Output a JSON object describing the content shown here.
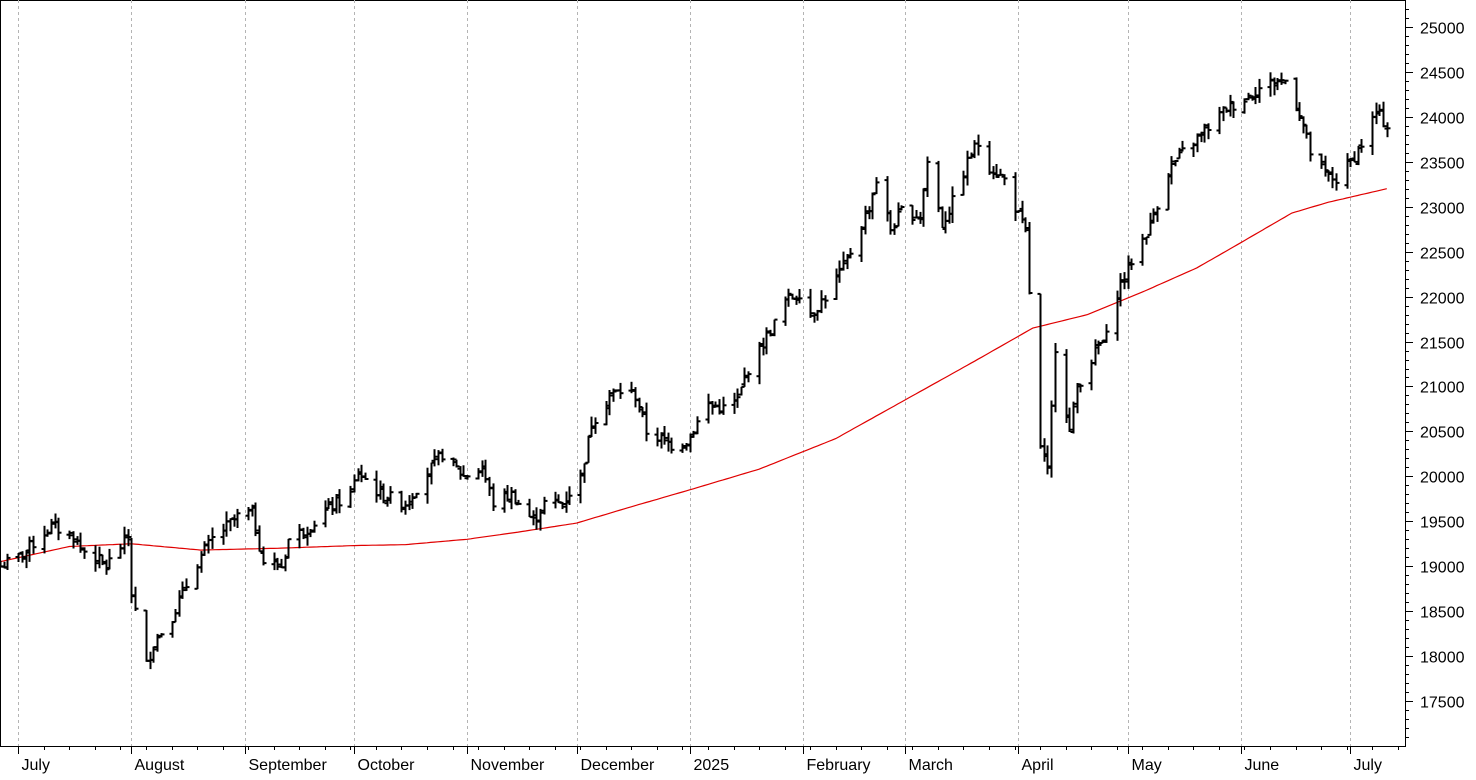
{
  "chart_data": {
    "type": "bar",
    "style": "ohlc",
    "title": "",
    "xlabel": "",
    "ylabel": "",
    "ylim": [
      17000,
      25300
    ],
    "y_ticks": [
      17500,
      18000,
      18500,
      19000,
      19500,
      20000,
      20500,
      21000,
      21500,
      22000,
      22500,
      23000,
      23500,
      24000,
      24500,
      25000
    ],
    "x_range": [
      "2024-06-26",
      "2025-07-16"
    ],
    "month_labels": [
      {
        "label": "July",
        "date": "2024-07-01"
      },
      {
        "label": "August",
        "date": "2024-08-01"
      },
      {
        "label": "September",
        "date": "2024-09-01"
      },
      {
        "label": "October",
        "date": "2024-10-01"
      },
      {
        "label": "November",
        "date": "2024-11-01"
      },
      {
        "label": "December",
        "date": "2024-12-01"
      },
      {
        "label": "2025",
        "date": "2025-01-01"
      },
      {
        "label": "February",
        "date": "2025-02-01"
      },
      {
        "label": "March",
        "date": "2025-03-01"
      },
      {
        "label": "April",
        "date": "2025-04-01"
      },
      {
        "label": "May",
        "date": "2025-05-01"
      },
      {
        "label": "June",
        "date": "2025-06-01"
      },
      {
        "label": "July",
        "date": "2025-07-01"
      }
    ],
    "grid": "vertical dashed at month starts",
    "colors": {
      "price": "#000000",
      "moving_average": "#e00000",
      "grid": "#b4b4b4",
      "axis": "#000000"
    },
    "series": [
      {
        "style": "ohlc",
        "key_points": [
          [
            "2024-06-26",
            19000
          ],
          [
            "2024-07-01",
            19100
          ],
          [
            "2024-07-10",
            19450
          ],
          [
            "2024-07-16",
            19330
          ],
          [
            "2024-07-18",
            19200
          ],
          [
            "2024-07-25",
            19000
          ],
          [
            "2024-07-31",
            19330
          ],
          [
            "2024-08-01",
            18700
          ],
          [
            "2024-08-05",
            17900
          ],
          [
            "2024-08-07",
            18150
          ],
          [
            "2024-08-12",
            18450
          ],
          [
            "2024-08-15",
            18700
          ],
          [
            "2024-08-19",
            19050
          ],
          [
            "2024-08-23",
            19300
          ],
          [
            "2024-08-30",
            19550
          ],
          [
            "2024-09-03",
            19600
          ],
          [
            "2024-09-06",
            19050
          ],
          [
            "2024-09-11",
            19000
          ],
          [
            "2024-09-13",
            19300
          ],
          [
            "2024-09-19",
            19450
          ],
          [
            "2024-09-24",
            19650
          ],
          [
            "2024-09-30",
            19800
          ],
          [
            "2024-10-02",
            20050
          ],
          [
            "2024-10-08",
            19800
          ],
          [
            "2024-10-15",
            19700
          ],
          [
            "2024-10-21",
            20050
          ],
          [
            "2024-10-25",
            20250
          ],
          [
            "2024-10-31",
            20000
          ],
          [
            "2024-11-05",
            20100
          ],
          [
            "2024-11-08",
            19700
          ],
          [
            "2024-11-13",
            19800
          ],
          [
            "2024-11-19",
            19500
          ],
          [
            "2024-11-22",
            19700
          ],
          [
            "2024-11-27",
            19700
          ],
          [
            "2024-12-02",
            20000
          ],
          [
            "2024-12-05",
            20600
          ],
          [
            "2024-12-10",
            20900
          ],
          [
            "2024-12-13",
            20950
          ],
          [
            "2024-12-17",
            20900
          ],
          [
            "2024-12-20",
            20500
          ],
          [
            "2024-12-27",
            20350
          ],
          [
            "2024-12-31",
            20400
          ],
          [
            "2025-01-06",
            20800
          ],
          [
            "2025-01-10",
            20750
          ],
          [
            "2025-01-14",
            20850
          ],
          [
            "2025-01-17",
            21200
          ],
          [
            "2025-01-24",
            21700
          ],
          [
            "2025-01-27",
            21950
          ],
          [
            "2025-01-31",
            22050
          ],
          [
            "2025-02-03",
            21800
          ],
          [
            "2025-02-07",
            22000
          ],
          [
            "2025-02-13",
            22400
          ],
          [
            "2025-02-19",
            23000
          ],
          [
            "2025-02-21",
            23300
          ],
          [
            "2025-02-25",
            22750
          ],
          [
            "2025-02-28",
            22950
          ],
          [
            "2025-03-05",
            22900
          ],
          [
            "2025-03-07",
            23500
          ],
          [
            "2025-03-11",
            22800
          ],
          [
            "2025-03-14",
            23050
          ],
          [
            "2025-03-19",
            23600
          ],
          [
            "2025-03-21",
            23700
          ],
          [
            "2025-03-24",
            23450
          ],
          [
            "2025-03-28",
            23300
          ],
          [
            "2025-04-01",
            22900
          ],
          [
            "2025-04-03",
            22700
          ],
          [
            "2025-04-04",
            22050
          ],
          [
            "2025-04-07",
            20300
          ],
          [
            "2025-04-09",
            20050
          ],
          [
            "2025-04-11",
            21450
          ],
          [
            "2025-04-15",
            20500
          ],
          [
            "2025-04-17",
            21000
          ],
          [
            "2025-04-23",
            21450
          ],
          [
            "2025-04-25",
            21550
          ],
          [
            "2025-04-28",
            22050
          ],
          [
            "2025-05-02",
            22400
          ],
          [
            "2025-05-07",
            22800
          ],
          [
            "2025-05-12",
            23400
          ],
          [
            "2025-05-16",
            23600
          ],
          [
            "2025-05-21",
            23800
          ],
          [
            "2025-05-28",
            24100
          ],
          [
            "2025-06-02",
            24200
          ],
          [
            "2025-06-05",
            24300
          ],
          [
            "2025-06-11",
            24400
          ],
          [
            "2025-06-13",
            24400
          ],
          [
            "2025-06-17",
            24050
          ],
          [
            "2025-06-20",
            23600
          ],
          [
            "2025-06-24",
            23350
          ],
          [
            "2025-06-27",
            23300
          ],
          [
            "2025-07-01",
            23500
          ],
          [
            "2025-07-04",
            23700
          ],
          [
            "2025-07-08",
            24050
          ],
          [
            "2025-07-10",
            23950
          ],
          [
            "2025-07-11",
            23900
          ]
        ]
      },
      {
        "style": "line",
        "key_points": [
          [
            "2024-06-26",
            19050
          ],
          [
            "2024-07-15",
            19220
          ],
          [
            "2024-08-01",
            19250
          ],
          [
            "2024-08-20",
            19180
          ],
          [
            "2024-09-10",
            19200
          ],
          [
            "2024-10-01",
            19230
          ],
          [
            "2024-10-15",
            19240
          ],
          [
            "2024-11-01",
            19300
          ],
          [
            "2024-11-15",
            19380
          ],
          [
            "2024-12-01",
            19480
          ],
          [
            "2024-12-15",
            19650
          ],
          [
            "2025-01-01",
            19850
          ],
          [
            "2025-01-20",
            20080
          ],
          [
            "2025-02-10",
            20420
          ],
          [
            "2025-03-01",
            20850
          ],
          [
            "2025-03-20",
            21280
          ],
          [
            "2025-04-05",
            21650
          ],
          [
            "2025-04-20",
            21800
          ],
          [
            "2025-05-05",
            22050
          ],
          [
            "2025-05-20",
            22320
          ],
          [
            "2025-06-01",
            22600
          ],
          [
            "2025-06-15",
            22930
          ],
          [
            "2025-06-25",
            23050
          ],
          [
            "2025-07-11",
            23200
          ]
        ]
      }
    ]
  }
}
